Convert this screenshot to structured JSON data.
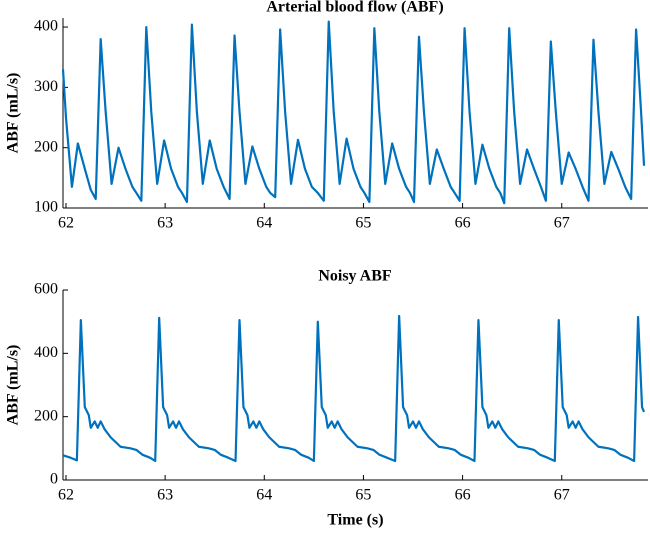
{
  "chart_data": [
    {
      "type": "line",
      "title": "Arterial blood flow (ABF)",
      "ylabel": "ABF (mL/s)",
      "color": "#0072bd",
      "xlim": [
        61.97,
        67.87
      ],
      "ylim": [
        100,
        415
      ],
      "xticks": [
        62,
        63,
        64,
        65,
        66,
        67
      ],
      "yticks": [
        100,
        200,
        300,
        400
      ],
      "x": [
        61.97,
        62.0,
        62.06,
        62.12,
        62.19,
        62.25,
        62.3,
        62.35,
        62.4,
        62.46,
        62.53,
        62.6,
        62.67,
        62.71,
        62.76,
        62.81,
        62.86,
        62.92,
        62.99,
        63.06,
        63.13,
        63.17,
        63.22,
        63.27,
        63.32,
        63.38,
        63.45,
        63.52,
        63.59,
        63.65,
        63.7,
        63.75,
        63.81,
        63.88,
        63.95,
        64.02,
        64.06,
        64.11,
        64.16,
        64.21,
        64.27,
        64.34,
        64.41,
        64.48,
        64.54,
        64.6,
        64.65,
        64.7,
        64.76,
        64.83,
        64.9,
        64.97,
        65.01,
        65.06,
        65.11,
        65.16,
        65.22,
        65.29,
        65.36,
        65.43,
        65.47,
        65.51,
        65.56,
        65.61,
        65.67,
        65.74,
        65.81,
        65.88,
        65.92,
        65.97,
        66.02,
        66.07,
        66.13,
        66.2,
        66.27,
        66.34,
        66.38,
        66.42,
        66.47,
        66.52,
        66.58,
        66.65,
        66.72,
        66.79,
        66.84,
        66.89,
        66.94,
        67.0,
        67.07,
        67.14,
        67.21,
        67.27,
        67.32,
        67.37,
        67.43,
        67.5,
        67.57,
        67.64,
        67.7,
        67.75,
        67.8,
        67.83
      ],
      "values": [
        330,
        250,
        135,
        207,
        165,
        130,
        115,
        380,
        260,
        140,
        200,
        165,
        135,
        125,
        112,
        400,
        260,
        140,
        212,
        165,
        135,
        125,
        110,
        404,
        260,
        140,
        212,
        165,
        135,
        115,
        386,
        260,
        140,
        202,
        165,
        135,
        125,
        118,
        396,
        260,
        140,
        213,
        165,
        135,
        125,
        112,
        409,
        260,
        140,
        215,
        165,
        135,
        125,
        110,
        398,
        260,
        140,
        207,
        165,
        135,
        125,
        110,
        384,
        260,
        140,
        197,
        165,
        135,
        125,
        112,
        398,
        260,
        140,
        205,
        165,
        135,
        125,
        108,
        398,
        260,
        140,
        197,
        165,
        135,
        112,
        376,
        260,
        140,
        192,
        165,
        135,
        112,
        379,
        260,
        140,
        193,
        165,
        135,
        115,
        396,
        260,
        170
      ]
    },
    {
      "type": "line",
      "title": "Noisy ABF",
      "ylabel": "ABF (mL/s)",
      "xlabel": "Time (s)",
      "color": "#0072bd",
      "xlim": [
        61.97,
        67.87
      ],
      "ylim": [
        0,
        600
      ],
      "xticks": [
        62,
        63,
        64,
        65,
        66,
        67
      ],
      "yticks": [
        0,
        200,
        400,
        600
      ],
      "x": [
        61.97,
        62.05,
        62.11,
        62.15,
        62.19,
        62.23,
        62.25,
        62.29,
        62.32,
        62.35,
        62.39,
        62.45,
        62.55,
        62.65,
        62.71,
        62.77,
        62.85,
        62.9,
        62.94,
        62.98,
        63.02,
        63.04,
        63.08,
        63.11,
        63.14,
        63.18,
        63.24,
        63.34,
        63.44,
        63.5,
        63.56,
        63.64,
        63.71,
        63.75,
        63.79,
        63.83,
        63.85,
        63.89,
        63.92,
        63.95,
        63.99,
        64.05,
        64.15,
        64.25,
        64.31,
        64.37,
        64.45,
        64.5,
        64.54,
        64.58,
        64.62,
        64.64,
        64.68,
        64.71,
        64.74,
        64.78,
        64.84,
        64.94,
        65.04,
        65.1,
        65.16,
        65.24,
        65.32,
        65.36,
        65.4,
        65.44,
        65.46,
        65.5,
        65.53,
        65.56,
        65.6,
        65.66,
        65.76,
        65.86,
        65.92,
        65.98,
        66.06,
        66.12,
        66.16,
        66.2,
        66.24,
        66.26,
        66.3,
        66.33,
        66.36,
        66.4,
        66.46,
        66.56,
        66.66,
        66.72,
        66.78,
        66.86,
        66.93,
        66.97,
        67.01,
        67.05,
        67.07,
        67.11,
        67.14,
        67.17,
        67.21,
        67.27,
        67.37,
        67.47,
        67.53,
        67.59,
        67.67,
        67.73,
        67.77,
        67.81,
        67.83
      ],
      "values": [
        78,
        70,
        62,
        505,
        230,
        205,
        165,
        185,
        165,
        185,
        160,
        135,
        105,
        100,
        95,
        80,
        70,
        60,
        512,
        230,
        205,
        165,
        185,
        165,
        185,
        160,
        135,
        105,
        100,
        95,
        80,
        70,
        60,
        505,
        230,
        205,
        165,
        185,
        165,
        185,
        160,
        135,
        105,
        100,
        95,
        80,
        70,
        60,
        500,
        230,
        205,
        165,
        185,
        165,
        185,
        160,
        135,
        105,
        100,
        95,
        80,
        70,
        60,
        518,
        230,
        205,
        165,
        185,
        165,
        185,
        160,
        135,
        105,
        100,
        95,
        80,
        70,
        60,
        505,
        230,
        205,
        165,
        185,
        165,
        185,
        160,
        135,
        105,
        100,
        95,
        80,
        70,
        60,
        505,
        230,
        205,
        165,
        185,
        165,
        185,
        160,
        135,
        105,
        100,
        95,
        80,
        70,
        60,
        515,
        230,
        215
      ]
    }
  ]
}
